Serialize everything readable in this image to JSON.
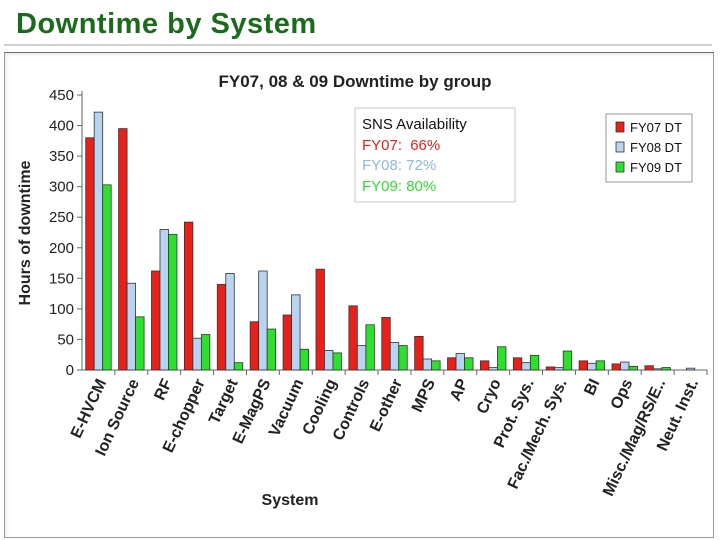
{
  "slide": {
    "title": "Downtime by System"
  },
  "chart_data": {
    "type": "bar",
    "title": "FY07, 08 & 09 Downtime by group",
    "xlabel": "System",
    "ylabel": "Hours of downtime",
    "ylim": [
      0,
      450
    ],
    "yticks": [
      0,
      50,
      100,
      150,
      200,
      250,
      300,
      350,
      400,
      450
    ],
    "grid": false,
    "legend_position": "top-right",
    "categories": [
      "E-HVCM",
      "Ion Source",
      "RF",
      "E-chopper",
      "Target",
      "E-MagPS",
      "Vacuum",
      "Cooling",
      "Controls",
      "E-other",
      "MPS",
      "AP",
      "Cryo",
      "Prot. Sys.",
      "Fac./Mech. Sys.",
      "BI",
      "Ops",
      "Misc./Mag/RS/E..",
      "Neut. Inst."
    ],
    "series": [
      {
        "name": "FY07 DT",
        "color": "#e8201a",
        "values": [
          380,
          395,
          162,
          242,
          140,
          79,
          90,
          165,
          105,
          86,
          55,
          20,
          15,
          20,
          5,
          15,
          10,
          7,
          0
        ]
      },
      {
        "name": "FY08 DT",
        "color": "#b8d4f0",
        "values": [
          422,
          142,
          230,
          52,
          158,
          162,
          123,
          32,
          40,
          45,
          18,
          27,
          4,
          12,
          4,
          11,
          13,
          2,
          3
        ]
      },
      {
        "name": "FY09 DT",
        "color": "#2ee02e",
        "values": [
          303,
          87,
          222,
          58,
          12,
          67,
          34,
          28,
          74,
          40,
          15,
          20,
          38,
          24,
          31,
          15,
          6,
          4,
          0
        ]
      }
    ],
    "annotation": {
      "heading": "SNS Availability",
      "lines": [
        {
          "label": "FY07:",
          "value": "66%",
          "color": "#e8201a"
        },
        {
          "label": "FY08:",
          "value": "72%",
          "color": "#8db8e0"
        },
        {
          "label": "FY09:",
          "value": "80%",
          "color": "#2ee02e"
        }
      ]
    }
  }
}
